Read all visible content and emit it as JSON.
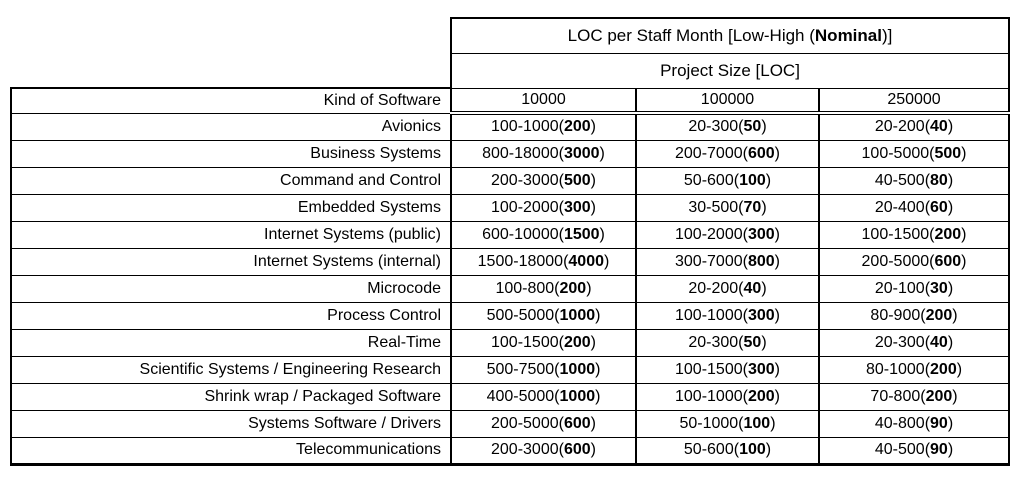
{
  "table": {
    "title_pre": "LOC per Staff Month [Low-High (",
    "title_bold": "Nominal",
    "title_post": ")]",
    "subtitle": "Project Size [LOC]",
    "kind_header": "Kind of Software",
    "size_columns": [
      "10000",
      "100000",
      "250000"
    ],
    "rows": [
      {
        "kind": "Avionics",
        "cells": [
          {
            "pre": "100-1000(",
            "nominal": "200",
            "post": ")"
          },
          {
            "pre": "20-300(",
            "nominal": "50",
            "post": ")"
          },
          {
            "pre": "20-200(",
            "nominal": "40",
            "post": ")"
          }
        ]
      },
      {
        "kind": "Business Systems",
        "cells": [
          {
            "pre": "800-18000(",
            "nominal": "3000",
            "post": ")"
          },
          {
            "pre": "200-7000(",
            "nominal": "600",
            "post": ")"
          },
          {
            "pre": "100-5000(",
            "nominal": "500",
            "post": ")"
          }
        ]
      },
      {
        "kind": "Command and Control",
        "cells": [
          {
            "pre": "200-3000(",
            "nominal": "500",
            "post": ")"
          },
          {
            "pre": "50-600(",
            "nominal": "100",
            "post": ")"
          },
          {
            "pre": "40-500(",
            "nominal": "80",
            "post": ")"
          }
        ]
      },
      {
        "kind": "Embedded Systems",
        "cells": [
          {
            "pre": "100-2000(",
            "nominal": "300",
            "post": ")"
          },
          {
            "pre": "30-500(",
            "nominal": "70",
            "post": ")"
          },
          {
            "pre": "20-400(",
            "nominal": "60",
            "post": ")"
          }
        ]
      },
      {
        "kind": "Internet Systems (public)",
        "cells": [
          {
            "pre": "600-10000(",
            "nominal": "1500",
            "post": ")"
          },
          {
            "pre": "100-2000(",
            "nominal": "300",
            "post": ")"
          },
          {
            "pre": "100-1500(",
            "nominal": "200",
            "post": ")"
          }
        ]
      },
      {
        "kind": "Internet Systems (internal)",
        "cells": [
          {
            "pre": "1500-18000(",
            "nominal": "4000",
            "post": ")"
          },
          {
            "pre": "300-7000(",
            "nominal": "800",
            "post": ")"
          },
          {
            "pre": "200-5000(",
            "nominal": "600",
            "post": ")"
          }
        ]
      },
      {
        "kind": "Microcode",
        "cells": [
          {
            "pre": "100-800(",
            "nominal": "200",
            "post": ")"
          },
          {
            "pre": "20-200(",
            "nominal": "40",
            "post": ")"
          },
          {
            "pre": "20-100(",
            "nominal": "30",
            "post": ")"
          }
        ]
      },
      {
        "kind": "Process Control",
        "cells": [
          {
            "pre": "500-5000(",
            "nominal": "1000",
            "post": ")"
          },
          {
            "pre": "100-1000(",
            "nominal": "300",
            "post": ")"
          },
          {
            "pre": "80-900(",
            "nominal": "200",
            "post": ")"
          }
        ]
      },
      {
        "kind": "Real-Time",
        "cells": [
          {
            "pre": "100-1500(",
            "nominal": "200",
            "post": ")"
          },
          {
            "pre": "20-300(",
            "nominal": "50",
            "post": ")"
          },
          {
            "pre": "20-300(",
            "nominal": "40",
            "post": ")"
          }
        ]
      },
      {
        "kind": "Scientific Systems / Engineering Research",
        "cells": [
          {
            "pre": "500-7500(",
            "nominal": "1000",
            "post": ")"
          },
          {
            "pre": "100-1500(",
            "nominal": "300",
            "post": ")"
          },
          {
            "pre": "80-1000(",
            "nominal": "200",
            "post": ")"
          }
        ]
      },
      {
        "kind": "Shrink wrap / Packaged Software",
        "cells": [
          {
            "pre": "400-5000(",
            "nominal": "1000",
            "post": ")"
          },
          {
            "pre": "100-1000(",
            "nominal": "200",
            "post": ")"
          },
          {
            "pre": "70-800(",
            "nominal": "200",
            "post": ")"
          }
        ]
      },
      {
        "kind": "Systems Software / Drivers",
        "cells": [
          {
            "pre": "200-5000(",
            "nominal": "600",
            "post": ")"
          },
          {
            "pre": "50-1000(",
            "nominal": "100",
            "post": ")"
          },
          {
            "pre": "40-800(",
            "nominal": "90",
            "post": ")"
          }
        ]
      },
      {
        "kind": "Telecommunications",
        "cells": [
          {
            "pre": "200-3000(",
            "nominal": "600",
            "post": ")"
          },
          {
            "pre": "50-600(",
            "nominal": "100",
            "post": ")"
          },
          {
            "pre": "40-500(",
            "nominal": "90",
            "post": ")"
          }
        ]
      }
    ]
  }
}
